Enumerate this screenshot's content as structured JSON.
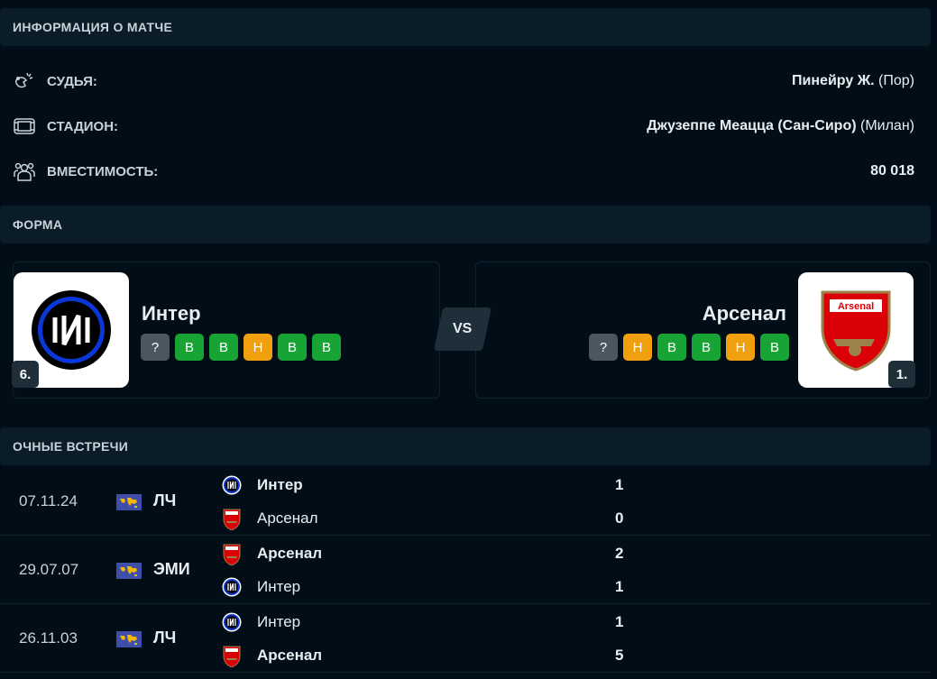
{
  "match_info": {
    "title": "ИНФОРМАЦИЯ О МАТЧЕ",
    "rows": [
      {
        "icon": "whistle-icon",
        "label": "СУДЬЯ:",
        "value": "Пинейру Ж.",
        "extra": "(Пор)"
      },
      {
        "icon": "stadium-icon",
        "label": "СТАДИОН:",
        "value": "Джузеппе Меацца (Сан-Сиро)",
        "extra": "(Милан)"
      },
      {
        "icon": "crowd-icon",
        "label": "ВМЕСТИМОСТЬ:",
        "value": "80 018",
        "extra": ""
      }
    ]
  },
  "form": {
    "title": "ФОРМА",
    "vs": "VS",
    "home": {
      "name": "Интер",
      "rank": "6.",
      "results": [
        "?",
        "В",
        "В",
        "Н",
        "В",
        "В"
      ]
    },
    "away": {
      "name": "Арсенал",
      "rank": "1.",
      "results": [
        "?",
        "Н",
        "В",
        "В",
        "Н",
        "В"
      ]
    }
  },
  "colors": {
    "win": "#18a335",
    "draw": "#f0a00e",
    "unknown": "#4b575f"
  },
  "h2h": {
    "title": "ОЧНЫЕ ВСТРЕЧИ",
    "matches": [
      {
        "date": "07.11.24",
        "competition": "ЛЧ",
        "home": "Интер",
        "away": "Арсенал",
        "home_score": "1",
        "away_score": "0",
        "winner": "home"
      },
      {
        "date": "29.07.07",
        "competition": "ЭМИ",
        "home": "Арсенал",
        "away": "Интер",
        "home_score": "2",
        "away_score": "1",
        "winner": "home"
      },
      {
        "date": "26.11.03",
        "competition": "ЛЧ",
        "home": "Интер",
        "away": "Арсенал",
        "home_score": "1",
        "away_score": "5",
        "winner": "away"
      }
    ]
  }
}
